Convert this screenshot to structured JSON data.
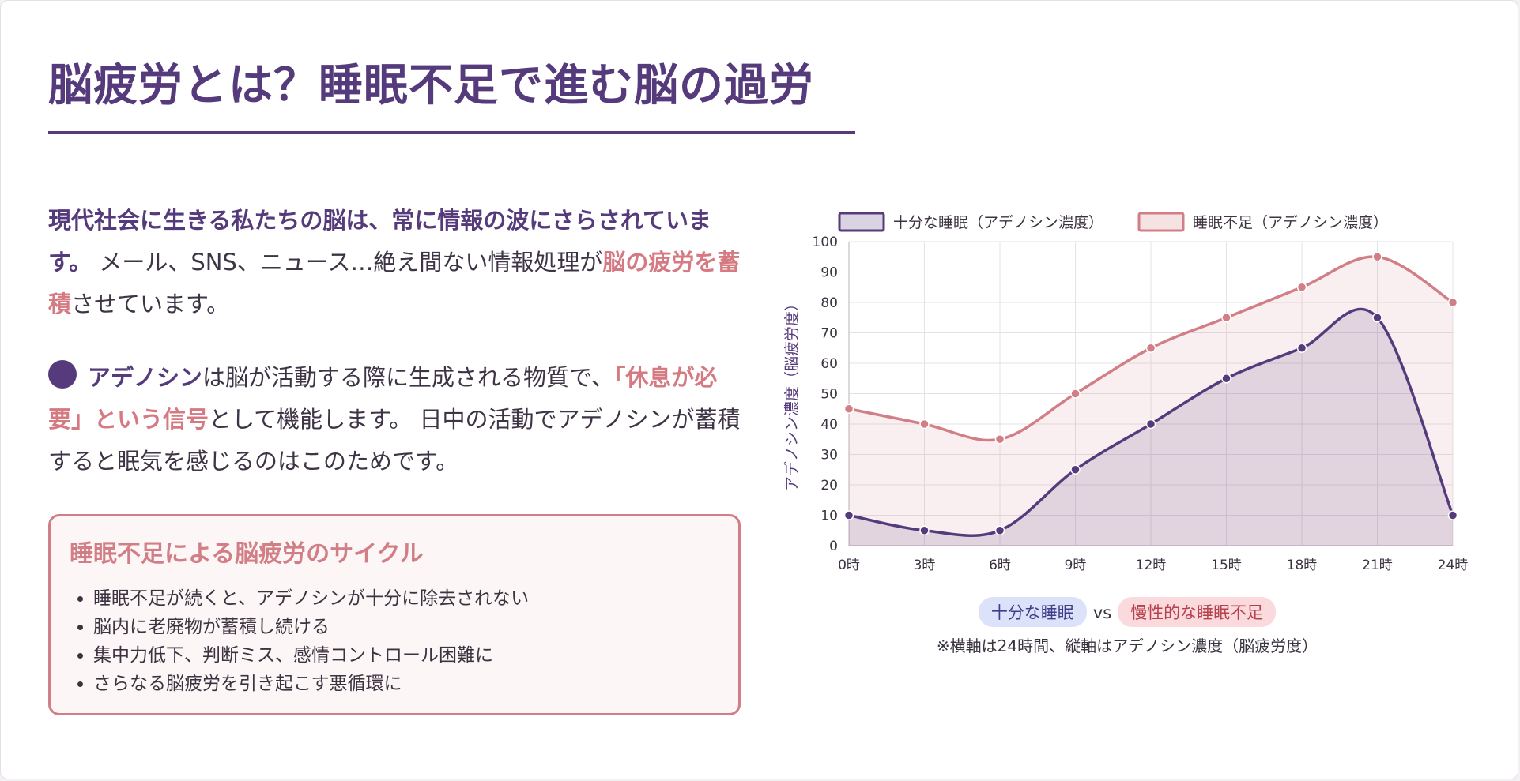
{
  "page": {
    "title": "脳疲労とは？睡眠不足で進む脳の過労"
  },
  "intro": {
    "lead_bold": "現代社会に生きる私たちの脳は、常に情報の波にさらされています。",
    "text_1": " メール、SNS、ニュース…絶え間ない情報処理が",
    "highlight": "脳の疲労を蓄積",
    "text_2": "させています。"
  },
  "adenosine": {
    "term": "アデノシン",
    "text_1": "は脳が活動する際に生成される物質で、",
    "highlight": "「休息が必要」という信号",
    "text_2": "として機能します。 日中の活動でアデノシンが蓄積すると眠気を感じるのはこのためです。"
  },
  "cycle": {
    "title": "睡眠不足による脳疲労のサイクル",
    "items": [
      "睡眠不足が続くと、アデノシンが十分に除去されない",
      "脳内に老廃物が蓄積し続ける",
      "集中力低下、判断ミス、感情コントロール困難に",
      "さらなる脳疲労を引き起こす悪循環に"
    ]
  },
  "comparison": {
    "good_label": "十分な睡眠",
    "vs": "vs",
    "bad_label": "慢性的な睡眠不足",
    "note": "※横軸は24時間、縦軸はアデノシン濃度（脳疲労度）"
  },
  "chart_data": {
    "type": "line",
    "categories": [
      "0時",
      "3時",
      "6時",
      "9時",
      "12時",
      "15時",
      "18時",
      "21時",
      "24時"
    ],
    "series": [
      {
        "name": "十分な睡眠（アデノシン濃度）",
        "values": [
          10,
          5,
          5,
          25,
          40,
          55,
          65,
          75,
          10
        ],
        "color": "#553a7c",
        "fill": "rgba(85,58,124,0.15)"
      },
      {
        "name": "睡眠不足（アデノシン濃度）",
        "values": [
          45,
          40,
          35,
          50,
          65,
          75,
          85,
          95,
          80
        ],
        "color": "#d27e86",
        "fill": "rgba(210,126,134,0.12)"
      }
    ],
    "ylabel": "アデノシン濃度（脳疲労度）",
    "ylim": [
      0,
      100
    ],
    "yticks": [
      0,
      10,
      20,
      30,
      40,
      50,
      60,
      70,
      80,
      90,
      100
    ],
    "grid": true,
    "legend": "top"
  }
}
